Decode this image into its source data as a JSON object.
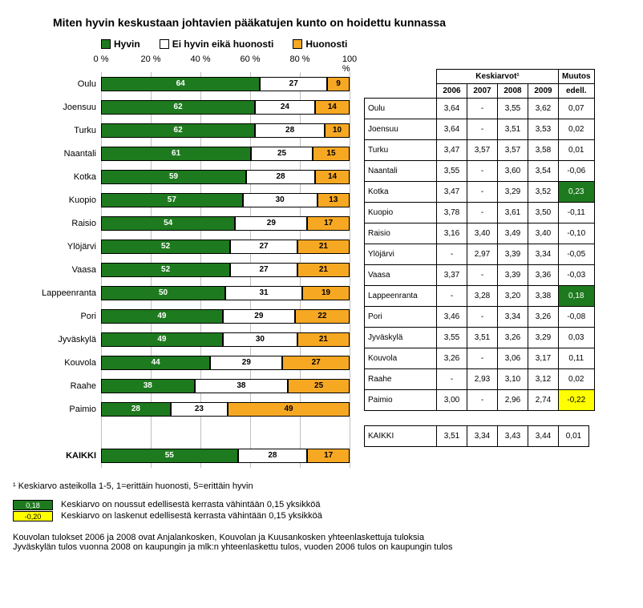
{
  "title": "Miten hyvin keskustaan johtavien pääkatujen kunto on hoidettu kunnassa",
  "legend": {
    "good": "Hyvin",
    "neutral": "Ei hyvin eikä huonosti",
    "bad": "Huonosti"
  },
  "colors": {
    "good": "#1e7a1e",
    "neutral": "#ffffff",
    "bad": "#f7a823",
    "grid": "#bfbfbf",
    "highlight_up": "#1e7a1e",
    "highlight_down": "#ffff00",
    "background": "#ffffff"
  },
  "axis": {
    "ticks": [
      "0 %",
      "20 %",
      "40 %",
      "60 %",
      "80 %",
      "100 %"
    ],
    "pct_positions": [
      0,
      20,
      40,
      60,
      80,
      100
    ]
  },
  "chart": {
    "rows": [
      {
        "city": "Oulu",
        "good": 64,
        "neutral": 27,
        "bad": 9
      },
      {
        "city": "Joensuu",
        "good": 62,
        "neutral": 24,
        "bad": 14
      },
      {
        "city": "Turku",
        "good": 62,
        "neutral": 28,
        "bad": 10
      },
      {
        "city": "Naantali",
        "good": 61,
        "neutral": 25,
        "bad": 15
      },
      {
        "city": "Kotka",
        "good": 59,
        "neutral": 28,
        "bad": 14
      },
      {
        "city": "Kuopio",
        "good": 57,
        "neutral": 30,
        "bad": 13
      },
      {
        "city": "Raisio",
        "good": 54,
        "neutral": 29,
        "bad": 17
      },
      {
        "city": "Ylöjärvi",
        "good": 52,
        "neutral": 27,
        "bad": 21
      },
      {
        "city": "Vaasa",
        "good": 52,
        "neutral": 27,
        "bad": 21
      },
      {
        "city": "Lappeenranta",
        "good": 50,
        "neutral": 31,
        "bad": 19
      },
      {
        "city": "Pori",
        "good": 49,
        "neutral": 29,
        "bad": 22
      },
      {
        "city": "Jyväskylä",
        "good": 49,
        "neutral": 30,
        "bad": 21
      },
      {
        "city": "Kouvola",
        "good": 44,
        "neutral": 29,
        "bad": 27
      },
      {
        "city": "Raahe",
        "good": 38,
        "neutral": 38,
        "bad": 25
      },
      {
        "city": "Paimio",
        "good": 28,
        "neutral": 23,
        "bad": 49
      }
    ],
    "total": {
      "city": "KAIKKI",
      "good": 55,
      "neutral": 28,
      "bad": 17
    }
  },
  "table": {
    "header_avg": "Keskiarvot¹",
    "header_change": "Muutos",
    "years": [
      "2006",
      "2007",
      "2008",
      "2009"
    ],
    "change_sub": "edell.",
    "rows": [
      {
        "city": "Oulu",
        "y": [
          "3,64",
          "-",
          "3,55",
          "3,62"
        ],
        "chg": "0,07",
        "hl": null
      },
      {
        "city": "Joensuu",
        "y": [
          "3,64",
          "-",
          "3,51",
          "3,53"
        ],
        "chg": "0,02",
        "hl": null
      },
      {
        "city": "Turku",
        "y": [
          "3,47",
          "3,57",
          "3,57",
          "3,58"
        ],
        "chg": "0,01",
        "hl": null
      },
      {
        "city": "Naantali",
        "y": [
          "3,55",
          "-",
          "3,60",
          "3,54"
        ],
        "chg": "-0,06",
        "hl": null
      },
      {
        "city": "Kotka",
        "y": [
          "3,47",
          "-",
          "3,29",
          "3,52"
        ],
        "chg": "0,23",
        "hl": "up"
      },
      {
        "city": "Kuopio",
        "y": [
          "3,78",
          "-",
          "3,61",
          "3,50"
        ],
        "chg": "-0,11",
        "hl": null
      },
      {
        "city": "Raisio",
        "y": [
          "3,16",
          "3,40",
          "3,49",
          "3,40"
        ],
        "chg": "-0,10",
        "hl": null
      },
      {
        "city": "Ylöjärvi",
        "y": [
          "-",
          "2,97",
          "3,39",
          "3,34"
        ],
        "chg": "-0,05",
        "hl": null
      },
      {
        "city": "Vaasa",
        "y": [
          "3,37",
          "-",
          "3,39",
          "3,36"
        ],
        "chg": "-0,03",
        "hl": null
      },
      {
        "city": "Lappeenranta",
        "y": [
          "-",
          "3,28",
          "3,20",
          "3,38"
        ],
        "chg": "0,18",
        "hl": "up"
      },
      {
        "city": "Pori",
        "y": [
          "3,46",
          "-",
          "3,34",
          "3,26"
        ],
        "chg": "-0,08",
        "hl": null
      },
      {
        "city": "Jyväskylä",
        "y": [
          "3,55",
          "3,51",
          "3,26",
          "3,29"
        ],
        "chg": "0,03",
        "hl": null
      },
      {
        "city": "Kouvola",
        "y": [
          "3,26",
          "-",
          "3,06",
          "3,17"
        ],
        "chg": "0,11",
        "hl": null
      },
      {
        "city": "Raahe",
        "y": [
          "-",
          "2,93",
          "3,10",
          "3,12"
        ],
        "chg": "0,02",
        "hl": null
      },
      {
        "city": "Paimio",
        "y": [
          "3,00",
          "-",
          "2,96",
          "2,74"
        ],
        "chg": "-0,22",
        "hl": "down"
      }
    ],
    "total": {
      "city": "KAIKKI",
      "y": [
        "3,51",
        "3,34",
        "3,43",
        "3,44"
      ],
      "chg": "0,01",
      "hl": null
    }
  },
  "footnotes": {
    "scale": "¹ Keskiarvo asteikolla 1-5, 1=erittäin huonosti, 5=erittäin hyvin",
    "up_value": "0,18",
    "up_text": "Keskiarvo on noussut edellisestä kerrasta vähintään 0,15 yksikköä",
    "down_value": "-0,20",
    "down_text": "Keskiarvo on laskenut edellisestä kerrasta vähintään 0,15 yksikköä",
    "note1": "Kouvolan tulokset 2006 ja 2008 ovat Anjalankosken, Kouvolan ja Kuusankosken yhteenlaskettuja tuloksia",
    "note2": "Jyväskylän tulos vuonna 2008 on kaupungin ja mlk:n yhteenlaskettu  tulos, vuoden 2006 tulos on  kaupungin tulos"
  }
}
